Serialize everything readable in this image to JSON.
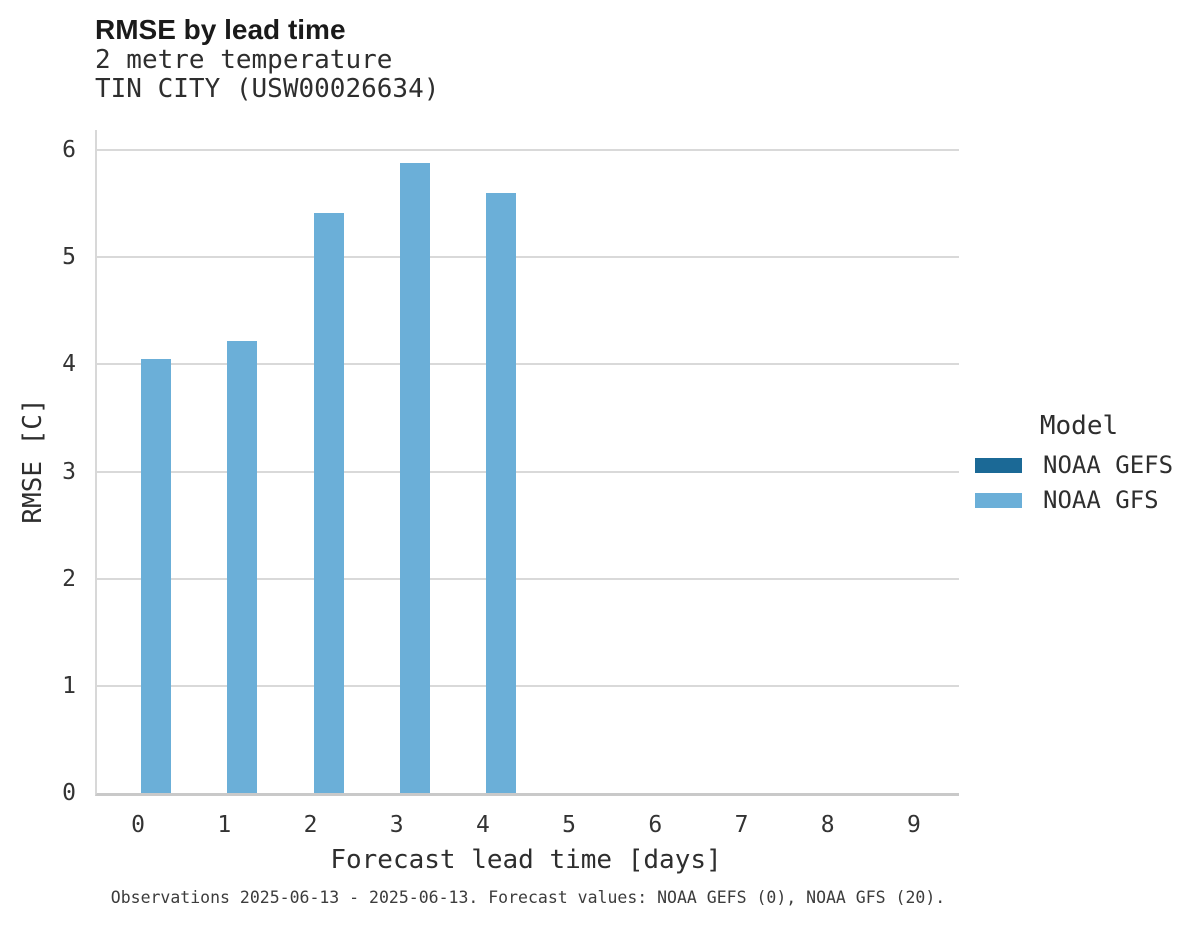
{
  "chart": {
    "title": "RMSE by lead time",
    "subtitle_line1": "2 metre temperature",
    "subtitle_line2": "TIN CITY (USW00026634)",
    "caption": "Observations 2025-06-13 - 2025-06-13. Forecast values: NOAA GEFS (0), NOAA GFS (20)."
  },
  "legend": {
    "title": "Model",
    "items": [
      {
        "label": "NOAA GEFS",
        "color": "#1b6996"
      },
      {
        "label": "NOAA GFS",
        "color": "#6bafd8"
      }
    ]
  },
  "colors": {
    "gridline": "#d9d9d9",
    "axis_line": "#c9c9c9",
    "noaa_gefs": "#1b6996",
    "noaa_gfs": "#6bafd8"
  },
  "chart_data": {
    "type": "bar",
    "title": "RMSE by lead time",
    "subtitle": [
      "2 metre temperature",
      "TIN CITY (USW00026634)"
    ],
    "categories": [
      "0",
      "1",
      "2",
      "3",
      "4",
      "5",
      "6",
      "7",
      "8",
      "9"
    ],
    "series": [
      {
        "name": "NOAA GEFS",
        "color": "#1b6996",
        "values": [
          null,
          null,
          null,
          null,
          null,
          null,
          null,
          null,
          null,
          null
        ]
      },
      {
        "name": "NOAA GFS",
        "color": "#6bafd8",
        "values": [
          4.05,
          4.22,
          5.41,
          5.88,
          5.6,
          null,
          null,
          null,
          null,
          null
        ]
      }
    ],
    "xlabel": "Forecast lead time [days]",
    "ylabel": "RMSE [C]",
    "ylim": [
      0,
      6.19
    ],
    "yticks": [
      0,
      1,
      2,
      3,
      4,
      5,
      6
    ],
    "grid": true,
    "legend_position": "right",
    "legend_title": "Model",
    "caption": "Observations 2025-06-13 - 2025-06-13. Forecast values: NOAA GEFS (0), NOAA GFS (20)."
  }
}
